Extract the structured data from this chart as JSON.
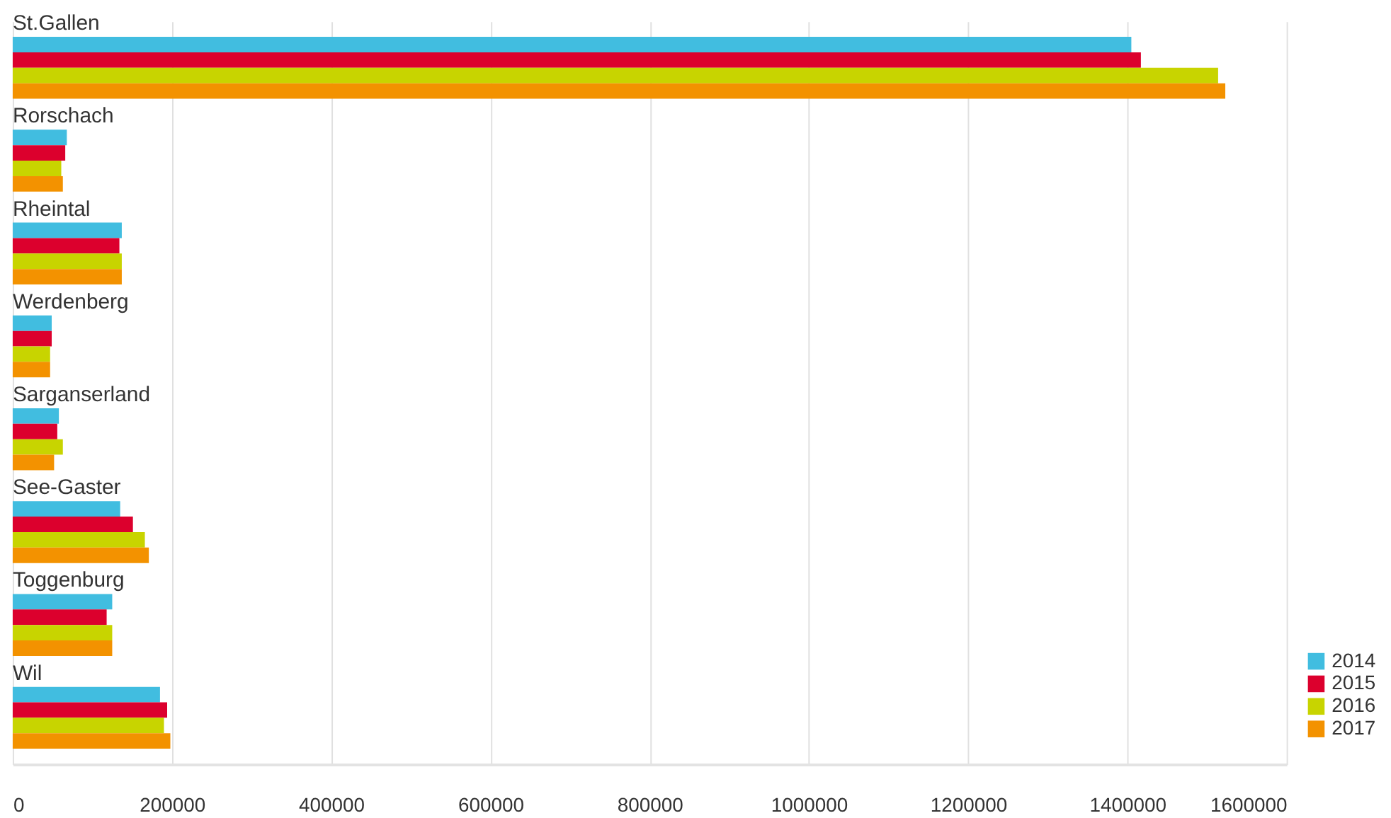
{
  "chart_data": {
    "type": "bar",
    "orientation": "horizontal",
    "categories": [
      "St.Gallen",
      "Rorschach",
      "Rheintal",
      "Werdenberg",
      "Sarganserland",
      "See-Gaster",
      "Toggenburg",
      "Wil"
    ],
    "series": [
      {
        "name": "2014",
        "color": "#41bde0",
        "values": [
          1405000,
          68000,
          137000,
          49000,
          58000,
          135000,
          125000,
          185000
        ]
      },
      {
        "name": "2015",
        "color": "#dc002d",
        "values": [
          1417000,
          66000,
          134000,
          49000,
          56000,
          151000,
          118000,
          194000
        ]
      },
      {
        "name": "2016",
        "color": "#c8d400",
        "values": [
          1514000,
          61000,
          137000,
          47000,
          63000,
          166000,
          125000,
          190000
        ]
      },
      {
        "name": "2017",
        "color": "#f39200",
        "values": [
          1523000,
          63000,
          137000,
          47000,
          52000,
          171000,
          125000,
          198000
        ]
      }
    ],
    "xlim": [
      0,
      1600000
    ],
    "xticks": [
      0,
      200000,
      400000,
      600000,
      800000,
      1000000,
      1200000,
      1400000,
      1600000
    ],
    "grid": "x",
    "legend": "bottom right"
  }
}
